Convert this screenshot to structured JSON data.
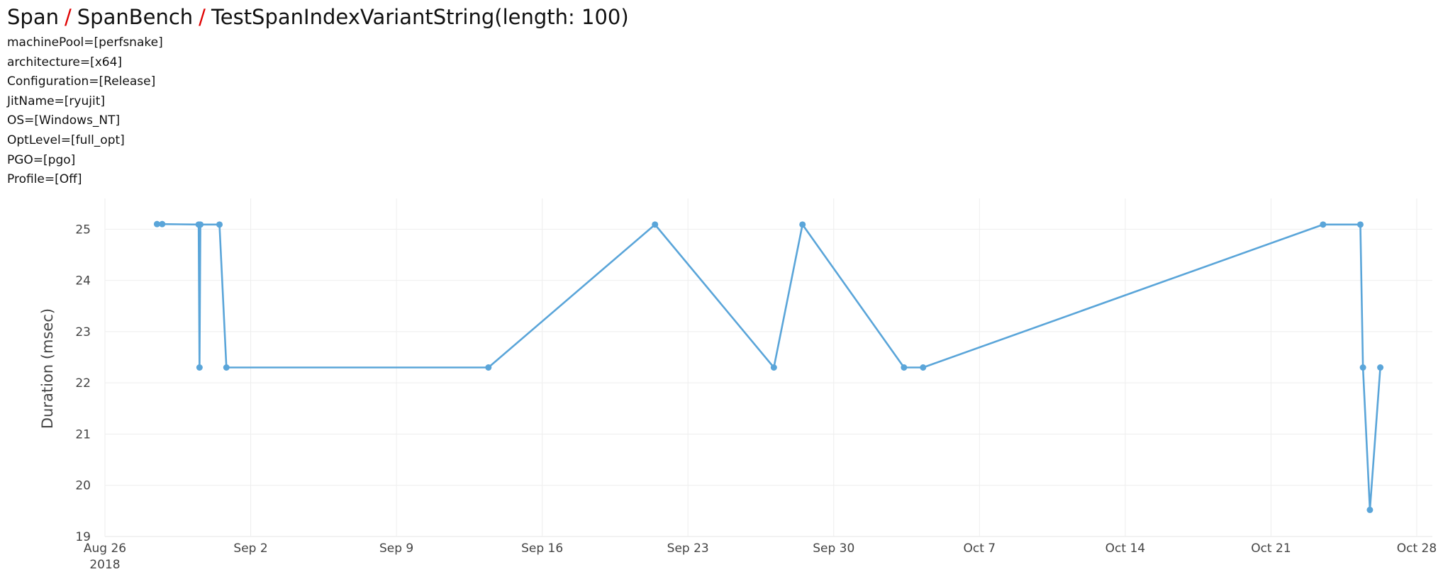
{
  "breadcrumb": {
    "items": [
      "Span",
      "SpanBench",
      "TestSpanIndexVariantString(length: 100)"
    ],
    "separator": "/"
  },
  "params": [
    "machinePool=[perfsnake]",
    "architecture=[x64]",
    "Configuration=[Release]",
    "JitName=[ryujit]",
    "OS=[Windows_NT]",
    "OptLevel=[full_opt]",
    "PGO=[pgo]",
    "Profile=[Off]"
  ],
  "colors": {
    "line": "#5aa5d9",
    "separator": "#e00000",
    "grid": "#eeeeee"
  },
  "chart_data": {
    "type": "line",
    "title": "",
    "xlabel": "",
    "ylabel": "Duration (msec)",
    "xlim": [
      "2018-08-26T00:00",
      "2018-10-28T18:00"
    ],
    "ylim": [
      19,
      25.6
    ],
    "grid": true,
    "x_ticks": [
      {
        "date": "2018-08-26",
        "label": "Aug 26",
        "sub": "2018"
      },
      {
        "date": "2018-09-02",
        "label": "Sep 2"
      },
      {
        "date": "2018-09-09",
        "label": "Sep 9"
      },
      {
        "date": "2018-09-16",
        "label": "Sep 16"
      },
      {
        "date": "2018-09-23",
        "label": "Sep 23"
      },
      {
        "date": "2018-09-30",
        "label": "Sep 30"
      },
      {
        "date": "2018-10-07",
        "label": "Oct 7"
      },
      {
        "date": "2018-10-14",
        "label": "Oct 14"
      },
      {
        "date": "2018-10-21",
        "label": "Oct 21"
      },
      {
        "date": "2018-10-28",
        "label": "Oct 28"
      }
    ],
    "y_ticks": [
      19,
      20,
      21,
      22,
      23,
      24,
      25
    ],
    "series": [
      {
        "points": [
          {
            "x": "2018-08-28T12:00",
            "y": 25.1
          },
          {
            "x": "2018-08-28T18:00",
            "y": 25.1
          },
          {
            "x": "2018-08-30T12:00",
            "y": 25.09
          },
          {
            "x": "2018-08-30T13:00",
            "y": 22.3
          },
          {
            "x": "2018-08-30T14:00",
            "y": 25.09
          },
          {
            "x": "2018-08-31T12:00",
            "y": 25.09
          },
          {
            "x": "2018-08-31T20:00",
            "y": 22.3
          },
          {
            "x": "2018-09-13T10:00",
            "y": 22.3
          },
          {
            "x": "2018-09-21T10:00",
            "y": 25.09
          },
          {
            "x": "2018-09-27T03:00",
            "y": 22.3
          },
          {
            "x": "2018-09-28T12:00",
            "y": 25.09
          },
          {
            "x": "2018-10-03T09:00",
            "y": 22.3
          },
          {
            "x": "2018-10-04T07:00",
            "y": 22.3
          },
          {
            "x": "2018-10-23T12:00",
            "y": 25.09
          },
          {
            "x": "2018-10-25T07:00",
            "y": 25.09
          },
          {
            "x": "2018-10-25T10:00",
            "y": 22.3
          },
          {
            "x": "2018-10-25T18:00",
            "y": 19.52
          },
          {
            "x": "2018-10-26T06:00",
            "y": 22.3
          }
        ]
      }
    ]
  }
}
